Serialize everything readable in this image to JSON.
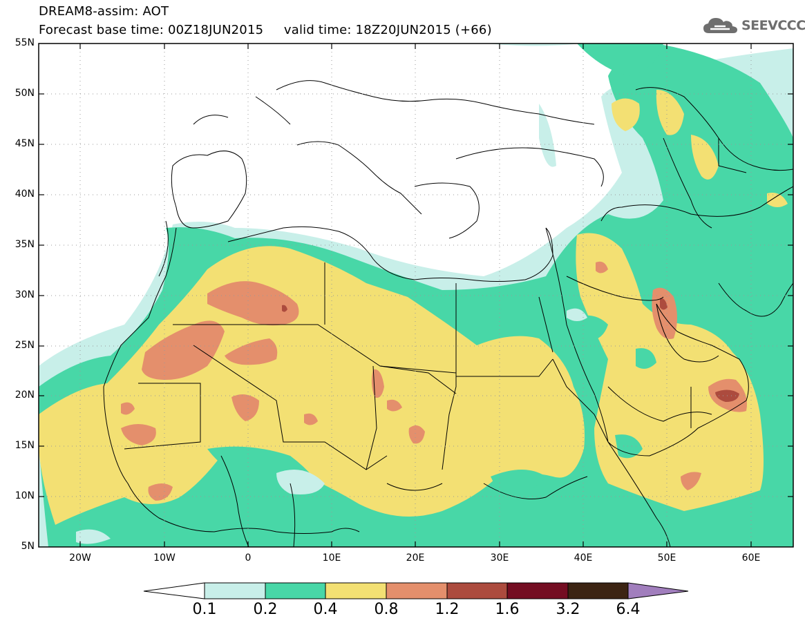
{
  "header": {
    "title_line1": "DREAM8-assim: AOT",
    "title_line2": "Forecast base time: 00Z18JUN2015     valid time: 18Z20JUN2015 (+66)",
    "logo_text": "SEEVCCC"
  },
  "map": {
    "lon_range": [
      -25,
      65
    ],
    "lat_range": [
      5,
      55
    ],
    "lat_labels": [
      "55N",
      "50N",
      "45N",
      "40N",
      "35N",
      "30N",
      "25N",
      "20N",
      "15N",
      "10N",
      "5N"
    ],
    "lon_labels": [
      "20W",
      "10W",
      "0",
      "10E",
      "20E",
      "30E",
      "40E",
      "50E",
      "60E"
    ],
    "grid": "dotted"
  },
  "colorbar": {
    "labels": [
      "0.1",
      "0.2",
      "0.4",
      "0.8",
      "1.2",
      "1.6",
      "3.2",
      "6.4"
    ],
    "colors": [
      "#ffffff",
      "#c8efe9",
      "#48d7a7",
      "#f3e073",
      "#e48f6c",
      "#ac4b3e",
      "#740d22",
      "#3c2413",
      "#a17ebd"
    ]
  }
}
